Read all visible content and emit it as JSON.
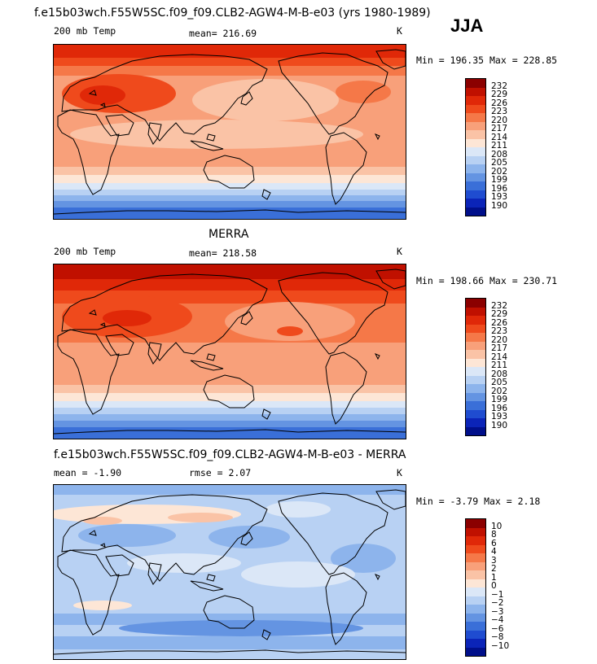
{
  "season": "JJA",
  "panel1": {
    "title": "f.e15b03wch.F55W5SC.f09_f09.CLB2-AGW4-M-B-e03 (yrs 1980-1989)",
    "variable": "200 mb Temp",
    "mean": "mean= 216.69",
    "units": "K",
    "minmax": "Min = 196.35 Max = 228.85"
  },
  "panel2": {
    "title": "MERRA",
    "variable": "200 mb Temp",
    "mean": "mean= 218.58",
    "units": "K",
    "minmax": "Min = 198.66 Max = 230.71"
  },
  "panel3": {
    "title": "f.e15b03wch.F55W5SC.f09_f09.CLB2-AGW4-M-B-e03 - MERRA",
    "mean": "mean =  -1.90",
    "rmse": "rmse =   2.07",
    "units": "K",
    "minmax": "Min =  -3.79 Max =   2.18"
  },
  "colorbar_abs": {
    "labels": [
      "232",
      "229",
      "226",
      "223",
      "220",
      "217",
      "214",
      "211",
      "208",
      "205",
      "202",
      "199",
      "196",
      "193",
      "190"
    ],
    "colors": [
      "#8b0000",
      "#c01000",
      "#e02808",
      "#ef4a1c",
      "#f57848",
      "#f8a07a",
      "#fac3a6",
      "#fde6d6",
      "#dbe7f7",
      "#b8d1f3",
      "#8db4ec",
      "#6494e2",
      "#3a6fd8",
      "#1f4cd0",
      "#0b24b8",
      "#000f8a"
    ]
  },
  "colorbar_diff": {
    "labels": [
      "10",
      "8",
      "6",
      "4",
      "3",
      "2",
      "1",
      "0",
      "−1",
      "−2",
      "−3",
      "−4",
      "−6",
      "−8",
      "−10"
    ],
    "colors": [
      "#8b0000",
      "#c01000",
      "#e02808",
      "#ef4a1c",
      "#f57848",
      "#f8a07a",
      "#fac3a6",
      "#fde6d6",
      "#dbe7f7",
      "#b8d1f3",
      "#8db4ec",
      "#6494e2",
      "#3a6fd8",
      "#1f4cd0",
      "#0b24b8",
      "#000f8a"
    ]
  }
}
